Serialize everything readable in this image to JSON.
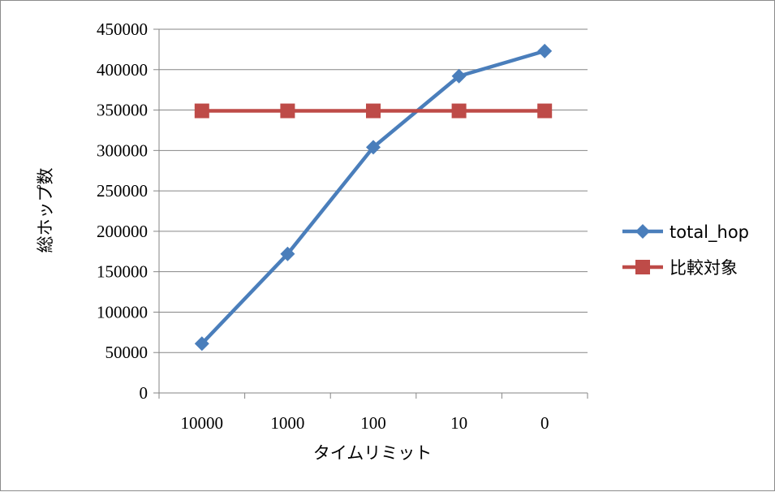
{
  "chart_data": {
    "type": "line",
    "title": "",
    "xlabel": "タイムリミット",
    "ylabel": "総ホップ数",
    "categories": [
      "10000",
      "1000",
      "100",
      "10",
      "0"
    ],
    "ylim": [
      0,
      450000
    ],
    "ytick_step": 50000,
    "grid": true,
    "legend_position": "right",
    "series": [
      {
        "name": "total_hop",
        "values": [
          61000,
          172000,
          304000,
          392000,
          423000
        ],
        "color": "#4a7ebb",
        "marker": "diamond"
      },
      {
        "name": "比較対象",
        "values": [
          349000,
          349000,
          349000,
          349000,
          349000
        ],
        "color": "#be4b48",
        "marker": "square"
      }
    ]
  }
}
